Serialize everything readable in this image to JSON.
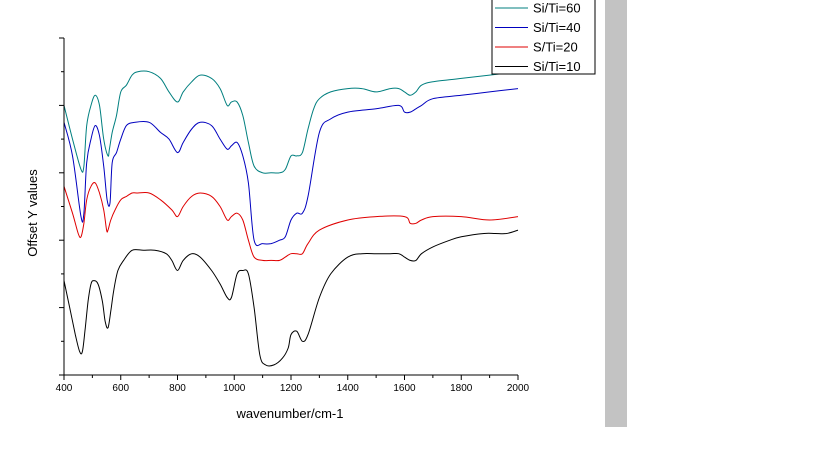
{
  "chart_data": {
    "type": "line",
    "title": "",
    "xlabel": "wavenumber/cm-1",
    "ylabel": "Offset Y values",
    "xlim": [
      400,
      2000
    ],
    "x_ticks": [
      400,
      600,
      800,
      1000,
      1200,
      1400,
      1600,
      1800,
      2000
    ],
    "x_tick_labels": [
      "400",
      "600",
      "800",
      "1000",
      "1200",
      "1400",
      "1600",
      "1800",
      "2000"
    ],
    "ylim": [
      0,
      100
    ],
    "y_tick_labels_shown": false,
    "grid": false,
    "legend_position": "top-right",
    "series": [
      {
        "name": "Si/Ti=60",
        "color": "#007f7f",
        "x": [
          400,
          430,
          460,
          470,
          480,
          495,
          510,
          525,
          540,
          555,
          560,
          570,
          585,
          600,
          620,
          640,
          660,
          700,
          740,
          770,
          800,
          820,
          850,
          880,
          920,
          950,
          975,
          990,
          1010,
          1030,
          1050,
          1070,
          1100,
          1130,
          1160,
          1180,
          1200,
          1220,
          1240,
          1260,
          1280,
          1300,
          1340,
          1400,
          1450,
          1500,
          1550,
          1580,
          1600,
          1620,
          1640,
          1660,
          1700,
          1800,
          1900,
          2000
        ],
        "y": [
          80,
          70,
          61,
          62,
          74,
          80,
          83,
          80,
          70,
          65,
          67,
          72,
          77,
          84,
          86,
          89,
          90,
          90,
          88,
          84,
          81,
          84,
          87,
          89,
          88,
          85,
          80,
          81,
          81,
          77,
          69,
          62,
          60,
          60,
          60,
          61,
          65,
          65,
          66,
          73,
          79,
          82,
          84,
          85,
          85,
          84,
          85,
          85,
          84,
          83,
          84,
          86,
          87,
          88,
          89,
          90
        ]
      },
      {
        "name": "Si/Ti=40",
        "color": "#0000bf",
        "x": [
          400,
          430,
          460,
          470,
          480,
          495,
          510,
          525,
          540,
          552,
          562,
          570,
          585,
          600,
          620,
          650,
          700,
          740,
          770,
          800,
          820,
          850,
          880,
          920,
          950,
          975,
          990,
          1010,
          1030,
          1050,
          1070,
          1100,
          1130,
          1160,
          1180,
          1200,
          1220,
          1240,
          1260,
          1300,
          1340,
          1400,
          1500,
          1580,
          1600,
          1620,
          1640,
          1660,
          1700,
          1800,
          1900,
          2000
        ],
        "y": [
          75,
          65,
          47,
          48,
          63,
          70,
          74,
          71,
          62,
          52,
          51,
          63,
          66,
          70,
          74,
          75,
          75,
          72,
          70,
          66,
          69,
          73,
          75,
          74,
          70,
          67,
          68,
          69,
          65,
          57,
          40,
          39,
          39,
          40,
          41,
          46,
          48,
          48,
          53,
          72,
          76,
          78,
          79,
          80,
          78,
          78,
          79,
          80,
          82,
          83,
          84,
          85
        ]
      },
      {
        "name": "S/Ti=20",
        "color": "#df0000",
        "x": [
          400,
          430,
          450,
          460,
          470,
          480,
          495,
          510,
          525,
          540,
          550,
          555,
          565,
          580,
          600,
          620,
          640,
          660,
          700,
          740,
          780,
          800,
          820,
          850,
          880,
          920,
          950,
          975,
          990,
          1010,
          1030,
          1050,
          1070,
          1100,
          1130,
          1160,
          1180,
          1200,
          1220,
          1240,
          1260,
          1300,
          1400,
          1500,
          1600,
          1620,
          1640,
          1660,
          1700,
          1800,
          1900,
          2000
        ],
        "y": [
          56,
          48,
          42,
          41,
          45,
          52,
          56,
          57,
          54,
          49,
          43,
          43,
          46,
          49,
          52,
          53,
          54,
          54,
          54,
          52,
          49,
          47,
          50,
          53,
          54,
          53,
          50,
          46,
          47,
          48,
          46,
          40,
          35,
          34,
          34,
          34,
          35,
          36,
          36,
          36,
          39,
          43,
          46,
          47,
          47,
          45,
          45,
          46,
          47,
          47,
          46,
          47
        ]
      },
      {
        "name": "Si/Ti=10",
        "color": "#000000",
        "x": [
          400,
          420,
          440,
          455,
          465,
          475,
          485,
          495,
          505,
          520,
          535,
          545,
          555,
          565,
          575,
          590,
          610,
          640,
          680,
          720,
          760,
          780,
          800,
          820,
          850,
          880,
          920,
          950,
          975,
          990,
          1010,
          1030,
          1050,
          1070,
          1090,
          1110,
          1140,
          1170,
          1190,
          1200,
          1220,
          1240,
          1260,
          1300,
          1340,
          1400,
          1450,
          1500,
          1550,
          1580,
          1600,
          1620,
          1640,
          1660,
          1700,
          1760,
          1800,
          1880,
          1920,
          1960,
          2000
        ],
        "y": [
          28,
          20,
          12,
          7,
          7,
          14,
          22,
          27,
          28,
          27,
          22,
          16,
          14,
          19,
          25,
          31,
          34,
          37,
          37,
          37,
          36,
          34,
          31,
          34,
          36,
          35,
          31,
          27,
          23,
          23,
          30,
          31,
          30,
          20,
          6,
          3,
          3,
          5,
          8,
          12,
          13,
          10,
          12,
          23,
          30,
          35,
          36,
          36,
          36,
          36,
          35,
          34,
          34,
          36,
          38,
          40,
          41,
          42,
          42,
          42,
          43
        ]
      }
    ]
  },
  "colors": {
    "axis": "#000000",
    "side_bar": "#c3c3c3",
    "legend_border": "#000000"
  }
}
